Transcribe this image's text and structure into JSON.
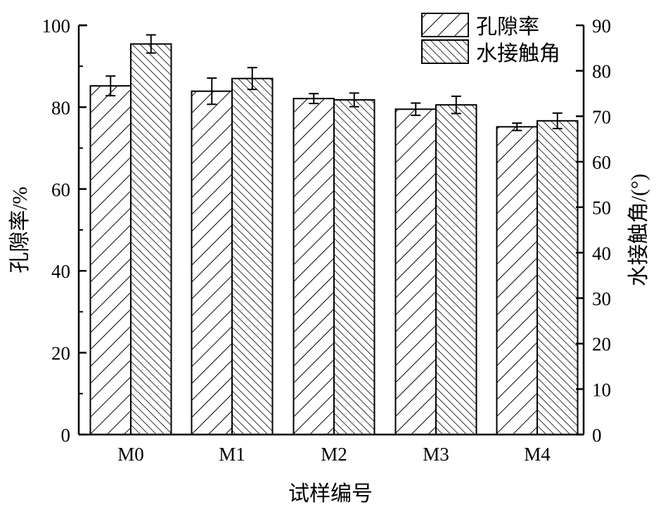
{
  "chart_data": {
    "type": "bar",
    "categories": [
      "M0",
      "M1",
      "M2",
      "M3",
      "M4"
    ],
    "xlabel": "试样编号",
    "ylabel": "孔隙率/%",
    "ylabel_right": "水接触角/(°)",
    "ylim": [
      0,
      100
    ],
    "ylim_right": [
      0,
      90
    ],
    "yticks": [
      "0",
      "20",
      "40",
      "60",
      "80",
      "100"
    ],
    "yticks_right": [
      "0",
      "10",
      "20",
      "30",
      "40",
      "50",
      "60",
      "70",
      "80",
      "90"
    ],
    "grid": false,
    "legend_position": "top-right",
    "colors": {
      "bar_fill": "#ffffff",
      "hatch": "#000000"
    },
    "series": [
      {
        "name": "孔隙率",
        "axis": "left",
        "hatch": "forward-diagonal",
        "values": [
          85.2,
          83.9,
          82.1,
          79.5,
          75.2
        ],
        "errors": [
          2.4,
          3.2,
          1.2,
          1.5,
          0.9
        ]
      },
      {
        "name": "水接触角",
        "axis": "right",
        "hatch": "backward-diagonal-dense",
        "values": [
          85.9,
          78.3,
          73.6,
          72.5,
          69.0
        ],
        "errors": [
          2.0,
          2.4,
          1.5,
          1.9,
          1.7
        ]
      }
    ]
  }
}
